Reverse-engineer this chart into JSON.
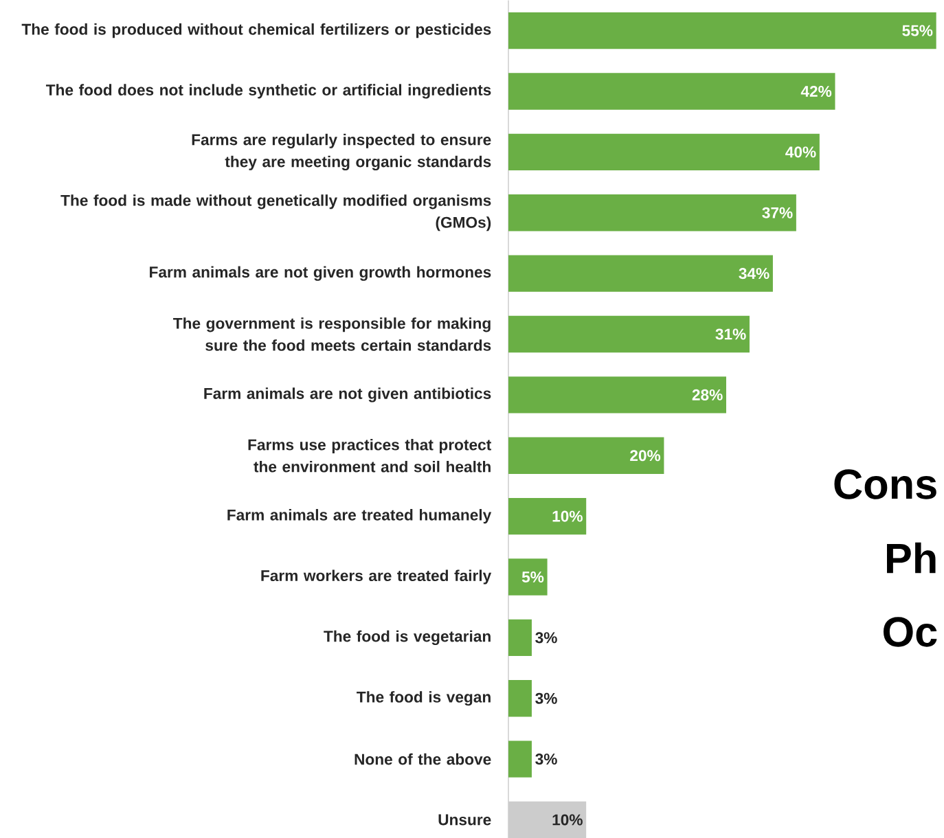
{
  "chart_data": {
    "type": "bar",
    "orientation": "horizontal",
    "categories": [
      "The food is produced without chemical fertilizers or pesticides",
      "The food does not include synthetic or artificial ingredients",
      "Farms are regularly inspected to ensure they are meeting organic standards",
      "The food is made without genetically modified organisms (GMOs)",
      "Farm animals are not given growth hormones",
      "The government is responsible for making sure the food meets certain standards",
      "Farm animals are not given antibiotics",
      "Farms use practices that protect the environment and soil health",
      "Farm animals are treated humanely",
      "Farm workers are treated fairly",
      "The food is vegetarian",
      "The food is vegan",
      "None of the above",
      "Unsure"
    ],
    "values": [
      55,
      42,
      40,
      37,
      34,
      31,
      28,
      20,
      10,
      5,
      3,
      3,
      3,
      10
    ],
    "value_labels": [
      "55%",
      "42%",
      "40%",
      "37%",
      "34%",
      "31%",
      "28%",
      "20%",
      "10%",
      "5%",
      "3%",
      "3%",
      "3%",
      "10%"
    ],
    "colors": [
      "#6aaf45",
      "#6aaf45",
      "#6aaf45",
      "#6aaf45",
      "#6aaf45",
      "#6aaf45",
      "#6aaf45",
      "#6aaf45",
      "#6aaf45",
      "#6aaf45",
      "#6aaf45",
      "#6aaf45",
      "#6aaf45",
      "#cccccc"
    ],
    "annotations": [
      "Cons",
      "Ph",
      "Oc"
    ]
  }
}
